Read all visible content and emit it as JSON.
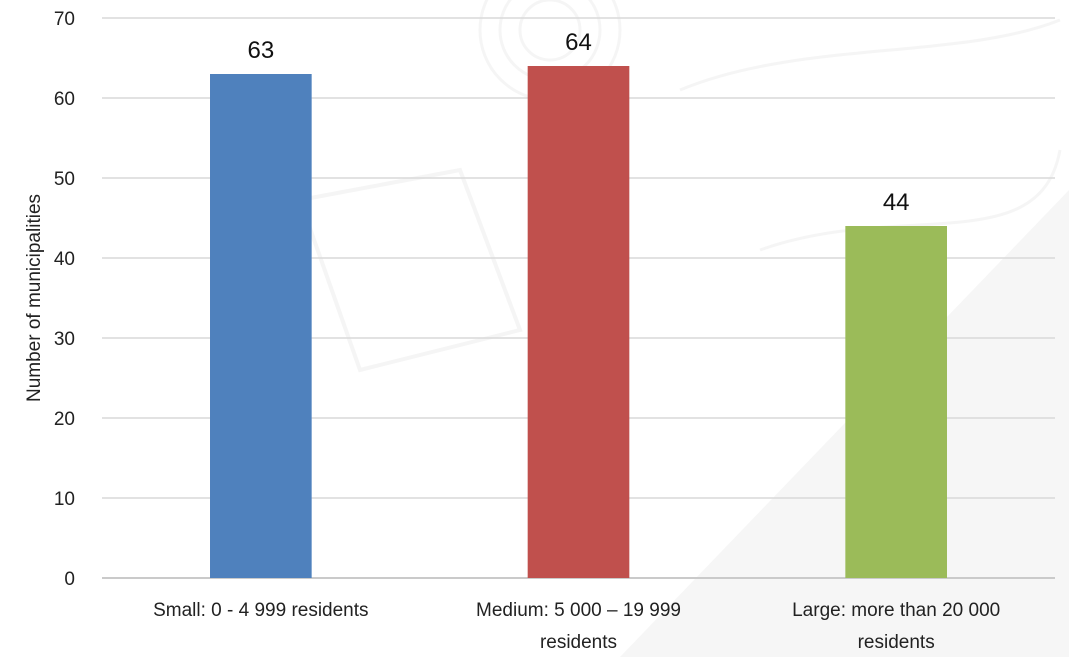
{
  "chart_data": {
    "type": "bar",
    "categories": [
      [
        "Small: 0 - 4 999 residents"
      ],
      [
        "Medium: 5 000 – 19 999",
        "residents"
      ],
      [
        "Large: more than 20 000",
        "residents"
      ]
    ],
    "values": [
      63,
      64,
      44
    ],
    "colors": [
      "#4F81BD",
      "#C0504D",
      "#9BBB59"
    ],
    "title": "",
    "xlabel": "",
    "ylabel": "Number of municipalities",
    "ylim": [
      0,
      70
    ],
    "yticks": [
      0,
      10,
      20,
      30,
      40,
      50,
      60,
      70
    ],
    "grid": true,
    "legend": "none",
    "gridline_color": "#d9d9d9"
  }
}
